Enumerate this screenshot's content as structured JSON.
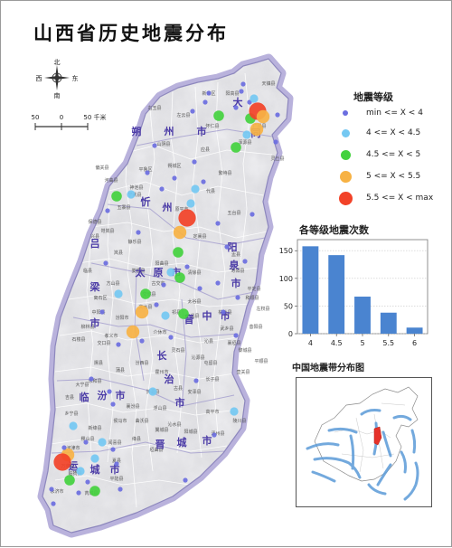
{
  "title": "山西省历史地震分布",
  "compass": {
    "north": "北",
    "south": "南",
    "east": "东",
    "west": "西"
  },
  "scale_bar": {
    "left_label": "50",
    "mid_label": "0",
    "right_label": "50 千米"
  },
  "legend": {
    "title": "地震等级",
    "items": [
      {
        "label": "min <= X < 4",
        "color": "#6b6ee0"
      },
      {
        "label": "4 <= X < 4.5",
        "color": "#74c8f2"
      },
      {
        "label": "4.5 <= X < 5",
        "color": "#43d13e"
      },
      {
        "label": "5 <= X < 5.5",
        "color": "#f7b244"
      },
      {
        "label": "5.5 <= X < max",
        "color": "#f24228"
      }
    ]
  },
  "region_labels": {
    "shuozhou": [
      "朔",
      "州",
      "市"
    ],
    "datong": [
      "大",
      "同"
    ],
    "xinzhou": [
      "忻",
      "州"
    ],
    "yangquan": [
      "阳",
      "泉",
      "市"
    ],
    "lvliang": [
      "吕",
      "梁",
      "市"
    ],
    "taiyuan": [
      "太",
      "原",
      "市"
    ],
    "jinzhong": [
      "晋",
      "中",
      "市"
    ],
    "changzhi": [
      "长",
      "治",
      "市"
    ],
    "linfen": [
      "临",
      "汾",
      "市"
    ],
    "jincheng": [
      "晋",
      "城",
      "市"
    ],
    "yuncheng": [
      "运",
      "城",
      "市"
    ]
  },
  "county_labels": [
    "天镇县",
    "阳高县",
    "左云县",
    "新荣区",
    "怀仁县",
    "应县",
    "山阴县",
    "广灵县",
    "灵丘县",
    "浑源县",
    "繁峙县",
    "代县",
    "宁武县",
    "五寨县",
    "偏关县",
    "河曲县",
    "保德县",
    "岢岚县",
    "静乐县",
    "五台县",
    "定襄县",
    "原平市",
    "盂县",
    "平定县",
    "寿阳县",
    "阳曲县",
    "娄烦县",
    "古交市",
    "清徐县",
    "交城县",
    "文水县",
    "汾阳市",
    "孝义市",
    "平遥县",
    "介休市",
    "灵石县",
    "榆社县",
    "左权县",
    "和顺县",
    "昔阳县",
    "祁县",
    "太谷县",
    "石楼县",
    "交口县",
    "隰县",
    "蒲县",
    "大宁县",
    "吉县",
    "乡宁县",
    "汾西县",
    "洪洞县",
    "霍州市",
    "古县",
    "安泽县",
    "沁源县",
    "沁县",
    "武乡县",
    "襄垣县",
    "屯留县",
    "长子县",
    "壶关县",
    "平顺县",
    "黎城县",
    "陵川县",
    "高平市",
    "阳城县",
    "沁水县",
    "泽州县",
    "翼城县",
    "曲沃县",
    "侯马市",
    "新绛县",
    "稷山县",
    "河津市",
    "万荣县",
    "闻喜县",
    "绛县",
    "垣曲县",
    "夏县",
    "平陆县",
    "芮城县",
    "永济市",
    "临猗县",
    "浮山县",
    "襄汾县",
    "永和县",
    "柳林县",
    "中阳县",
    "方山县",
    "兴县",
    "临县",
    "离石区",
    "岚县",
    "神池县",
    "朔城区",
    "右玉县",
    "平鲁区"
  ],
  "histogram": {
    "title": "各等级地震次数"
  },
  "inset": {
    "title": "中国地震带分布图"
  },
  "chart_data": {
    "type": "bar",
    "title": "各等级地震次数",
    "categories": [
      "4",
      "4.5",
      "5",
      "5.5",
      "6"
    ],
    "values": [
      158,
      142,
      67,
      38,
      11
    ],
    "ylim": [
      0,
      170
    ],
    "yticks": [
      "0",
      "50",
      "100",
      "150"
    ],
    "bar_color": "#4a84d0",
    "grid": true
  }
}
